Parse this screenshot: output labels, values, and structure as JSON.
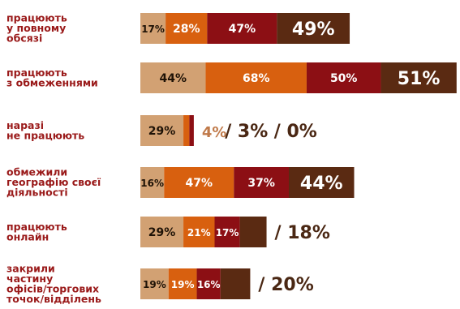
{
  "chart_data": {
    "type": "bar",
    "stacked": true,
    "orientation": "horizontal",
    "colors": [
      "#d2a173",
      "#d8600f",
      "#8c0f14",
      "#5a2a12"
    ],
    "outside_color": "#4a2713",
    "rows": [
      {
        "label_lines": [
          "працюють",
          "у повному",
          "обсязі"
        ],
        "values": [
          17,
          28,
          47,
          49
        ],
        "labels": [
          "17%",
          "28%",
          "47%",
          "49%"
        ],
        "outside": []
      },
      {
        "label_lines": [
          "працюють",
          "з обмеженнями"
        ],
        "values": [
          44,
          68,
          50,
          51
        ],
        "labels": [
          "44%",
          "68%",
          "50%",
          "51%"
        ],
        "outside": []
      },
      {
        "label_lines": [
          "наразі",
          "не працюють"
        ],
        "values": [
          29,
          4,
          3,
          0
        ],
        "labels": [
          "29%",
          "",
          "",
          ""
        ],
        "outside": [
          "4%",
          "/ 3%",
          "/ 0%"
        ]
      },
      {
        "label_lines": [
          "обмежили",
          "географію своєї",
          "діяльності"
        ],
        "values": [
          16,
          47,
          37,
          44
        ],
        "labels": [
          "16%",
          "47%",
          "37%",
          "44%"
        ],
        "outside": []
      },
      {
        "label_lines": [
          "працюють",
          "онлайн"
        ],
        "values": [
          29,
          21,
          17,
          18
        ],
        "labels": [
          "29%",
          "21%",
          "17%",
          ""
        ],
        "outside": [
          "/ 18%"
        ]
      },
      {
        "label_lines": [
          "закрили",
          "частину",
          "офісів/торгових",
          "точок/відділень"
        ],
        "values": [
          19,
          19,
          16,
          20
        ],
        "labels": [
          "19%",
          "19%",
          "16%",
          ""
        ],
        "outside": [
          "/ 20%"
        ]
      }
    ]
  }
}
